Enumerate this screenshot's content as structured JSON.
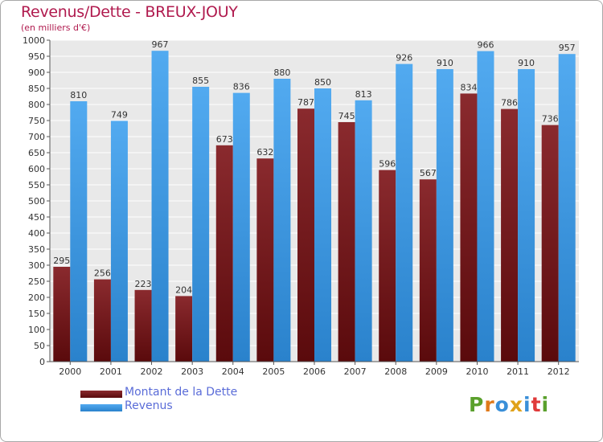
{
  "chart_data": {
    "type": "bar",
    "title": "Revenus/Dette - BREUX-JOUY",
    "subtitle": "(en milliers d'€)",
    "categories": [
      "2000",
      "2001",
      "2002",
      "2003",
      "2004",
      "2005",
      "2006",
      "2007",
      "2008",
      "2009",
      "2010",
      "2011",
      "2012"
    ],
    "series": [
      {
        "name": "Montant de la Dette",
        "values": [
          295,
          256,
          223,
          204,
          673,
          632,
          787,
          745,
          596,
          567,
          834,
          786,
          736
        ],
        "color": "#7a1e22"
      },
      {
        "name": "Revenus",
        "values": [
          810,
          749,
          967,
          855,
          836,
          880,
          850,
          813,
          926,
          910,
          966,
          910,
          957
        ],
        "color": "#3d9ae2"
      }
    ],
    "ylim": [
      0,
      1000
    ],
    "ytick_step": 50,
    "grid": true,
    "legend_position": "bottom-left"
  },
  "logo": {
    "letters": [
      "P",
      "r",
      "o",
      "x",
      "i",
      "t",
      "i"
    ],
    "colors": [
      "#5aa02c",
      "#e07a1a",
      "#3a8fd8",
      "#e0a21a",
      "#3a8fd8",
      "#e03a3a",
      "#5aa02c"
    ]
  }
}
